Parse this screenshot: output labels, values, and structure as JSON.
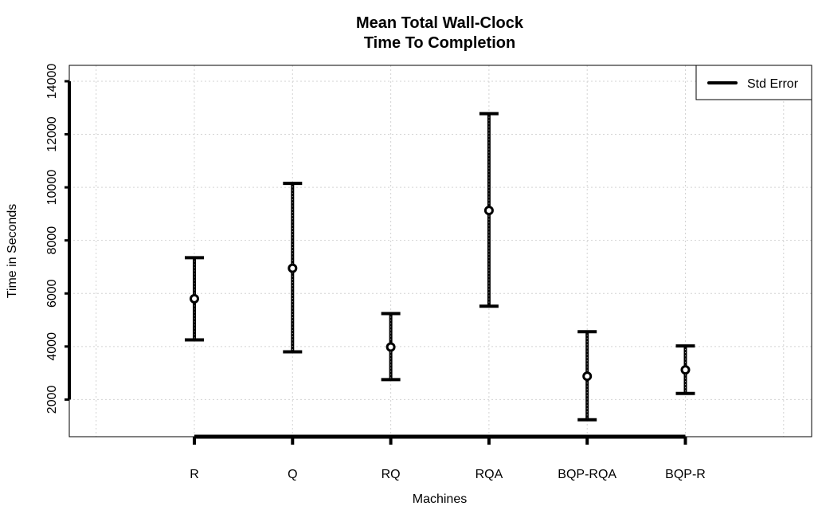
{
  "chart_data": {
    "type": "scatter",
    "title": "Mean Total Wall-Clock",
    "subtitle": "Time To Completion",
    "xlabel": "Machines",
    "ylabel": "Time in Seconds",
    "categories": [
      "R",
      "Q",
      "RQ",
      "RQA",
      "BQP-RQA",
      "BQP-R"
    ],
    "means": [
      5800,
      6950,
      3980,
      9130,
      2880,
      3120
    ],
    "lower": [
      4250,
      3800,
      2750,
      5520,
      1240,
      2230
    ],
    "upper": [
      7350,
      10150,
      5240,
      12780,
      4560,
      4020
    ],
    "yticks": [
      2000,
      4000,
      6000,
      8000,
      10000,
      12000,
      14000
    ],
    "ylim": [
      600,
      14600
    ],
    "grid": true,
    "legend": {
      "position": "top-right",
      "entries": [
        "Std Error"
      ]
    }
  }
}
